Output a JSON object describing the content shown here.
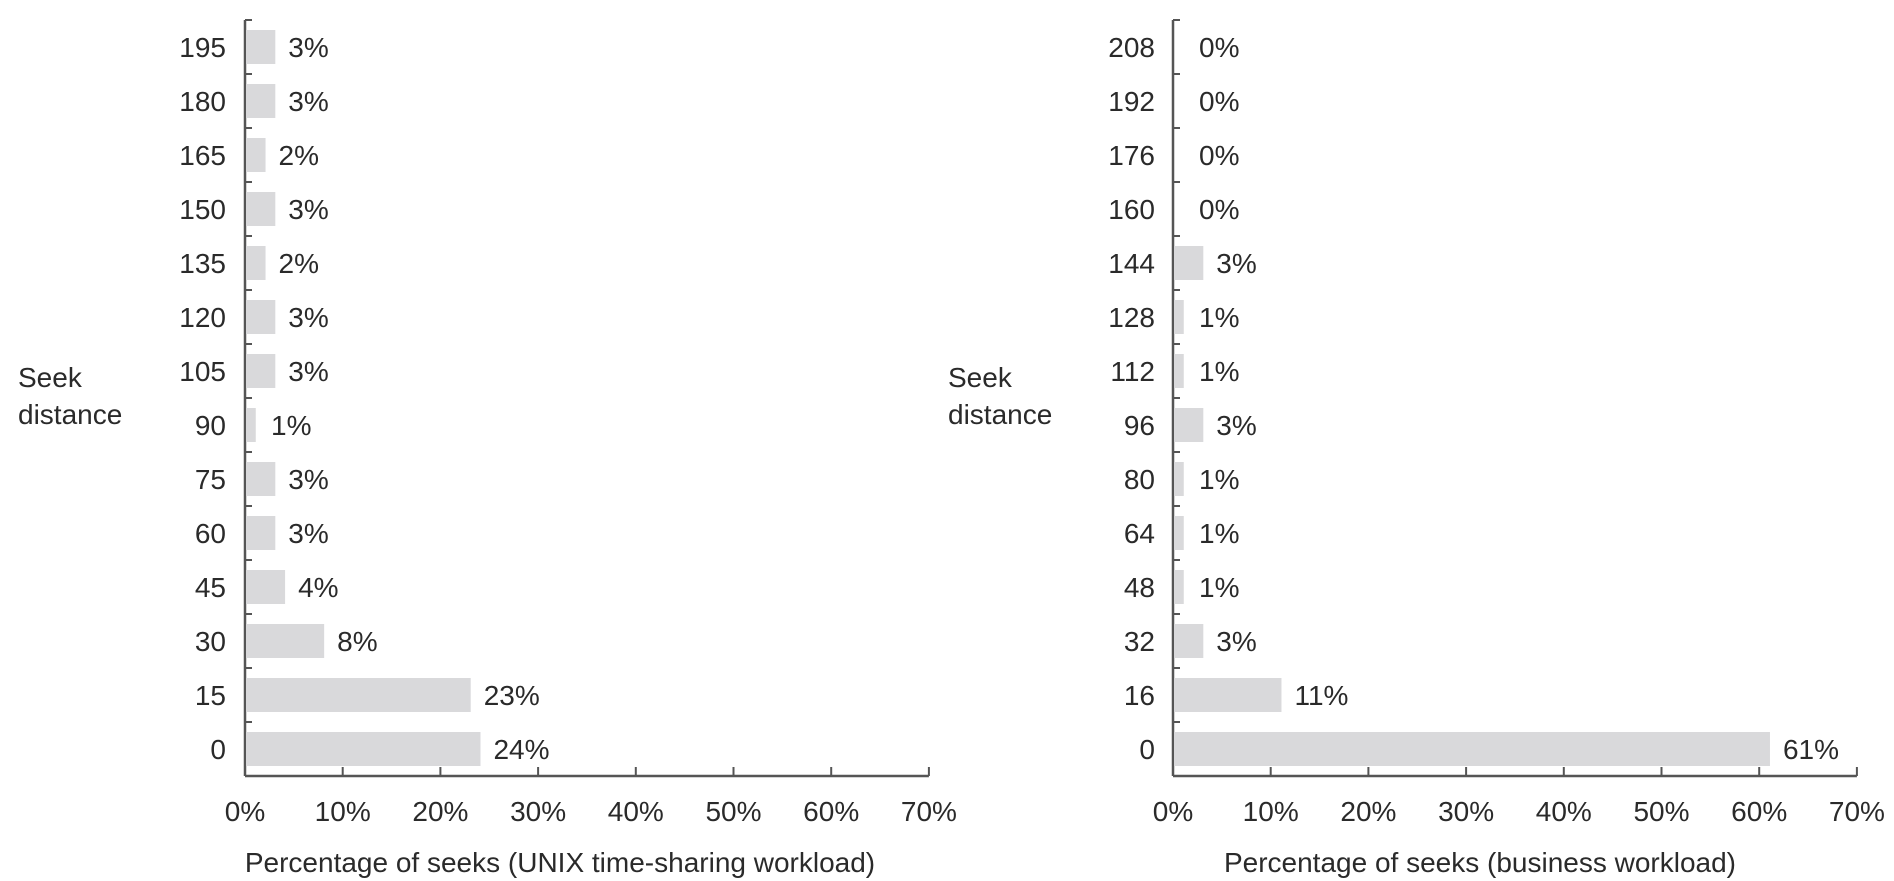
{
  "chart_data": [
    {
      "type": "bar",
      "orientation": "horizontal",
      "title": "",
      "xlabel": "Percentage of seeks (UNIX time-sharing workload)",
      "ylabel_lines": [
        "Seek",
        "distance"
      ],
      "xlim": [
        0,
        70
      ],
      "xticks": [
        "0%",
        "10%",
        "20%",
        "30%",
        "40%",
        "50%",
        "60%",
        "70%"
      ],
      "categories": [
        "0",
        "15",
        "30",
        "45",
        "60",
        "75",
        "90",
        "105",
        "120",
        "135",
        "150",
        "165",
        "180",
        "195"
      ],
      "values": [
        24,
        23,
        8,
        4,
        3,
        3,
        1,
        3,
        3,
        2,
        3,
        2,
        3,
        3
      ],
      "data_labels": [
        "24%",
        "23%",
        "8%",
        "4%",
        "3%",
        "3%",
        "1%",
        "3%",
        "3%",
        "2%",
        "3%",
        "2%",
        "3%",
        "3%"
      ],
      "bar_color": "#d9d9db",
      "grid": false
    },
    {
      "type": "bar",
      "orientation": "horizontal",
      "title": "",
      "xlabel": "Percentage of seeks (business workload)",
      "ylabel_lines": [
        "Seek",
        "distance"
      ],
      "xlim": [
        0,
        70
      ],
      "xticks": [
        "0%",
        "10%",
        "20%",
        "30%",
        "40%",
        "50%",
        "60%",
        "70%"
      ],
      "categories": [
        "0",
        "16",
        "32",
        "48",
        "64",
        "80",
        "96",
        "112",
        "128",
        "144",
        "160",
        "176",
        "192",
        "208"
      ],
      "values": [
        61,
        11,
        3,
        1,
        1,
        1,
        3,
        1,
        1,
        3,
        0,
        0,
        0,
        0
      ],
      "data_labels": [
        "61%",
        "11%",
        "3%",
        "1%",
        "1%",
        "1%",
        "3%",
        "1%",
        "1%",
        "3%",
        "0%",
        "0%",
        "0%",
        "0%"
      ],
      "bar_color": "#d9d9db",
      "grid": false
    }
  ]
}
